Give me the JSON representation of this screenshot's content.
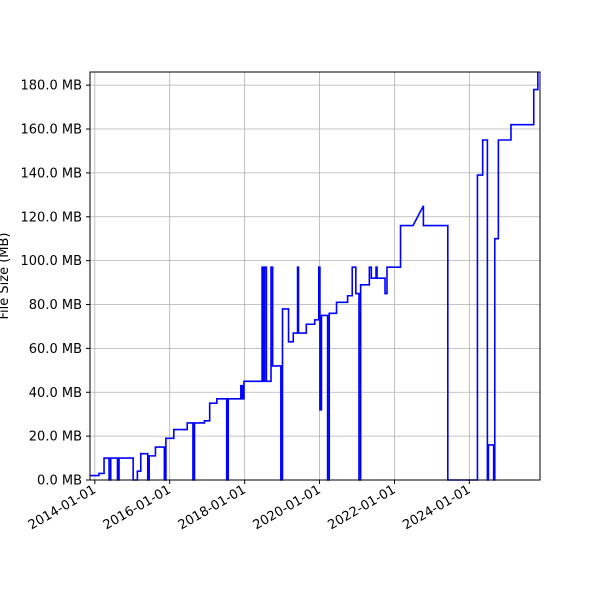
{
  "chart_data": {
    "type": "line",
    "title": "",
    "xlabel": "",
    "ylabel": "File Size (MB)",
    "grid": true,
    "legend": "none",
    "line_color": "#0000ff",
    "xlim": [
      "2013-11-15",
      "2025-11-20"
    ],
    "ylim": [
      0,
      186
    ],
    "yticks": [
      0,
      20,
      40,
      60,
      80,
      100,
      120,
      140,
      160,
      180
    ],
    "ytick_labels": [
      "0.0 MB",
      "20.0 MB",
      "40.0 MB",
      "60.0 MB",
      "80.0 MB",
      "100.0 MB",
      "120.0 MB",
      "140.0 MB",
      "160.0 MB",
      "180.0 MB"
    ],
    "xticks": [
      "2014-01-01",
      "2016-01-01",
      "2018-01-01",
      "2020-01-01",
      "2022-01-01",
      "2024-01-01"
    ],
    "xtick_labels": [
      "2014-01-01",
      "2016-01-01",
      "2018-01-01",
      "2020-01-01",
      "2022-01-01",
      "2024-01-01"
    ],
    "series": [
      {
        "points": [
          [
            "2013-11-20",
            2
          ],
          [
            "2014-02-10",
            2
          ],
          [
            "2014-02-10",
            3
          ],
          [
            "2014-04-01",
            3
          ],
          [
            "2014-04-01",
            10
          ],
          [
            "2014-05-20",
            10
          ],
          [
            "2014-05-20",
            0
          ],
          [
            "2014-06-05",
            0
          ],
          [
            "2014-06-05",
            10
          ],
          [
            "2014-08-10",
            10
          ],
          [
            "2014-08-10",
            0
          ],
          [
            "2014-08-25",
            0
          ],
          [
            "2014-08-25",
            10
          ],
          [
            "2015-01-10",
            10
          ],
          [
            "2015-01-10",
            0
          ],
          [
            "2015-02-20",
            0
          ],
          [
            "2015-02-20",
            4
          ],
          [
            "2015-03-25",
            4
          ],
          [
            "2015-03-25",
            12
          ],
          [
            "2015-06-01",
            12
          ],
          [
            "2015-06-01",
            0
          ],
          [
            "2015-06-15",
            0
          ],
          [
            "2015-06-15",
            11
          ],
          [
            "2015-08-15",
            11
          ],
          [
            "2015-08-15",
            15
          ],
          [
            "2015-11-10",
            15
          ],
          [
            "2015-11-10",
            0
          ],
          [
            "2015-11-25",
            0
          ],
          [
            "2015-11-25",
            19
          ],
          [
            "2016-02-10",
            19
          ],
          [
            "2016-02-10",
            23
          ],
          [
            "2016-06-20",
            23
          ],
          [
            "2016-06-20",
            26
          ],
          [
            "2016-08-15",
            26
          ],
          [
            "2016-08-15",
            0
          ],
          [
            "2016-08-30",
            0
          ],
          [
            "2016-08-30",
            26
          ],
          [
            "2016-12-05",
            26
          ],
          [
            "2016-12-05",
            27
          ],
          [
            "2017-01-25",
            27
          ],
          [
            "2017-01-25",
            35
          ],
          [
            "2017-04-05",
            35
          ],
          [
            "2017-04-05",
            37
          ],
          [
            "2017-07-10",
            37
          ],
          [
            "2017-07-10",
            0
          ],
          [
            "2017-07-25",
            0
          ],
          [
            "2017-07-25",
            37
          ],
          [
            "2017-11-25",
            37
          ],
          [
            "2017-11-25",
            43
          ],
          [
            "2017-12-10",
            43
          ],
          [
            "2017-12-10",
            37
          ],
          [
            "2017-12-25",
            37
          ],
          [
            "2017-12-25",
            45
          ],
          [
            "2018-06-20",
            45
          ],
          [
            "2018-06-20",
            97
          ],
          [
            "2018-07-01",
            97
          ],
          [
            "2018-07-01",
            45
          ],
          [
            "2018-07-15",
            45
          ],
          [
            "2018-07-15",
            97
          ],
          [
            "2018-08-01",
            97
          ],
          [
            "2018-08-01",
            45
          ],
          [
            "2018-09-15",
            45
          ],
          [
            "2018-09-15",
            97
          ],
          [
            "2018-10-01",
            97
          ],
          [
            "2018-10-01",
            52
          ],
          [
            "2018-12-20",
            52
          ],
          [
            "2018-12-20",
            0
          ],
          [
            "2019-01-05",
            0
          ],
          [
            "2019-01-05",
            78
          ],
          [
            "2019-03-05",
            78
          ],
          [
            "2019-03-05",
            63
          ],
          [
            "2019-04-20",
            63
          ],
          [
            "2019-04-20",
            67
          ],
          [
            "2019-06-01",
            67
          ],
          [
            "2019-06-01",
            97
          ],
          [
            "2019-06-10",
            97
          ],
          [
            "2019-06-10",
            67
          ],
          [
            "2019-08-25",
            67
          ],
          [
            "2019-08-25",
            71
          ],
          [
            "2019-11-15",
            71
          ],
          [
            "2019-11-15",
            73
          ],
          [
            "2019-12-25",
            73
          ],
          [
            "2019-12-25",
            97
          ],
          [
            "2020-01-05",
            97
          ],
          [
            "2020-01-05",
            32
          ],
          [
            "2020-01-20",
            32
          ],
          [
            "2020-01-20",
            75
          ],
          [
            "2020-03-20",
            75
          ],
          [
            "2020-03-20",
            0
          ],
          [
            "2020-04-05",
            0
          ],
          [
            "2020-04-05",
            76
          ],
          [
            "2020-06-15",
            76
          ],
          [
            "2020-06-15",
            81
          ],
          [
            "2020-10-01",
            81
          ],
          [
            "2020-10-01",
            84
          ],
          [
            "2020-11-15",
            84
          ],
          [
            "2020-11-15",
            97
          ],
          [
            "2020-12-20",
            97
          ],
          [
            "2020-12-20",
            85
          ],
          [
            "2021-01-20",
            85
          ],
          [
            "2021-01-20",
            0
          ],
          [
            "2021-02-05",
            0
          ],
          [
            "2021-02-05",
            89
          ],
          [
            "2021-05-01",
            89
          ],
          [
            "2021-05-01",
            97
          ],
          [
            "2021-05-20",
            97
          ],
          [
            "2021-05-20",
            92
          ],
          [
            "2021-07-05",
            92
          ],
          [
            "2021-07-05",
            97
          ],
          [
            "2021-07-15",
            97
          ],
          [
            "2021-07-15",
            92
          ],
          [
            "2021-10-01",
            92
          ],
          [
            "2021-10-01",
            85
          ],
          [
            "2021-10-20",
            85
          ],
          [
            "2021-10-20",
            97
          ],
          [
            "2022-03-01",
            97
          ],
          [
            "2022-03-01",
            116
          ],
          [
            "2022-07-01",
            116
          ],
          [
            "2022-10-10",
            125
          ],
          [
            "2022-10-10",
            116
          ],
          [
            "2023-06-05",
            116
          ],
          [
            "2023-06-05",
            0
          ],
          [
            "2024-03-20",
            0
          ],
          [
            "2024-03-20",
            139
          ],
          [
            "2024-05-10",
            139
          ],
          [
            "2024-05-10",
            155
          ],
          [
            "2024-06-25",
            155
          ],
          [
            "2024-06-25",
            0
          ],
          [
            "2024-07-05",
            0
          ],
          [
            "2024-07-05",
            16
          ],
          [
            "2024-08-25",
            16
          ],
          [
            "2024-08-25",
            0
          ],
          [
            "2024-09-05",
            0
          ],
          [
            "2024-09-05",
            110
          ],
          [
            "2024-10-10",
            110
          ],
          [
            "2024-10-10",
            155
          ],
          [
            "2025-02-10",
            155
          ],
          [
            "2025-02-10",
            162
          ],
          [
            "2025-09-20",
            162
          ],
          [
            "2025-09-20",
            178
          ],
          [
            "2025-10-01",
            178
          ],
          [
            "2025-10-01",
            178
          ],
          [
            "2025-10-30",
            178
          ],
          [
            "2025-10-30",
            186
          ]
        ]
      }
    ]
  }
}
